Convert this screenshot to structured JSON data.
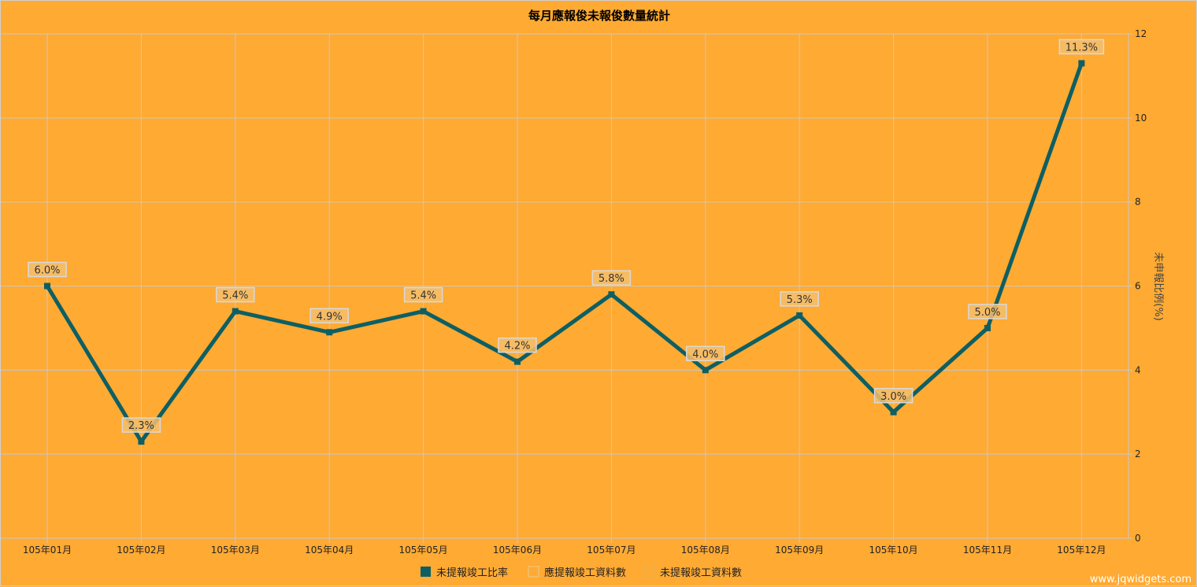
{
  "chart_data": {
    "type": "line",
    "title": "每月應報俊未報俊數量統計",
    "categories": [
      "105年01月",
      "105年02月",
      "105年03月",
      "105年04月",
      "105年05月",
      "105年06月",
      "105年07月",
      "105年08月",
      "105年09月",
      "105年10月",
      "105年11月",
      "105年12月"
    ],
    "series": [
      {
        "name": "未提報竣工比率",
        "values": [
          6.0,
          2.3,
          5.4,
          4.9,
          5.4,
          4.2,
          5.8,
          4.0,
          5.3,
          3.0,
          5.0,
          11.3
        ],
        "data_labels": [
          "6.0%",
          "2.3%",
          "5.4%",
          "4.9%",
          "5.4%",
          "4.2%",
          "5.8%",
          "4.0%",
          "5.3%",
          "3.0%",
          "5.0%",
          "11.3%"
        ],
        "color": "#0e5f63"
      }
    ],
    "ylabel": "未申報比例(%)",
    "ylim": [
      0,
      12
    ],
    "yticks": [
      0,
      2,
      4,
      6,
      8,
      10,
      12
    ],
    "y_axis_side": "right",
    "grid": true,
    "legend": {
      "placement": "bottom-center",
      "entries": [
        {
          "label": "未提報竣工比率",
          "color": "#0e5f63",
          "filled": true
        },
        {
          "label": "應提報竣工資料數",
          "color": "#f0c070",
          "filled": false
        },
        {
          "label": "未提報竣工資料數",
          "color": "#f0b040",
          "filled": false
        }
      ]
    }
  },
  "watermark": "www.jqwidgets.com",
  "colors": {
    "background": "#ffaa33",
    "grid": "#c8c8c8",
    "line": "#0e5f63",
    "label_box": "#f3bf6f",
    "label_border": "#d9d9d9"
  }
}
